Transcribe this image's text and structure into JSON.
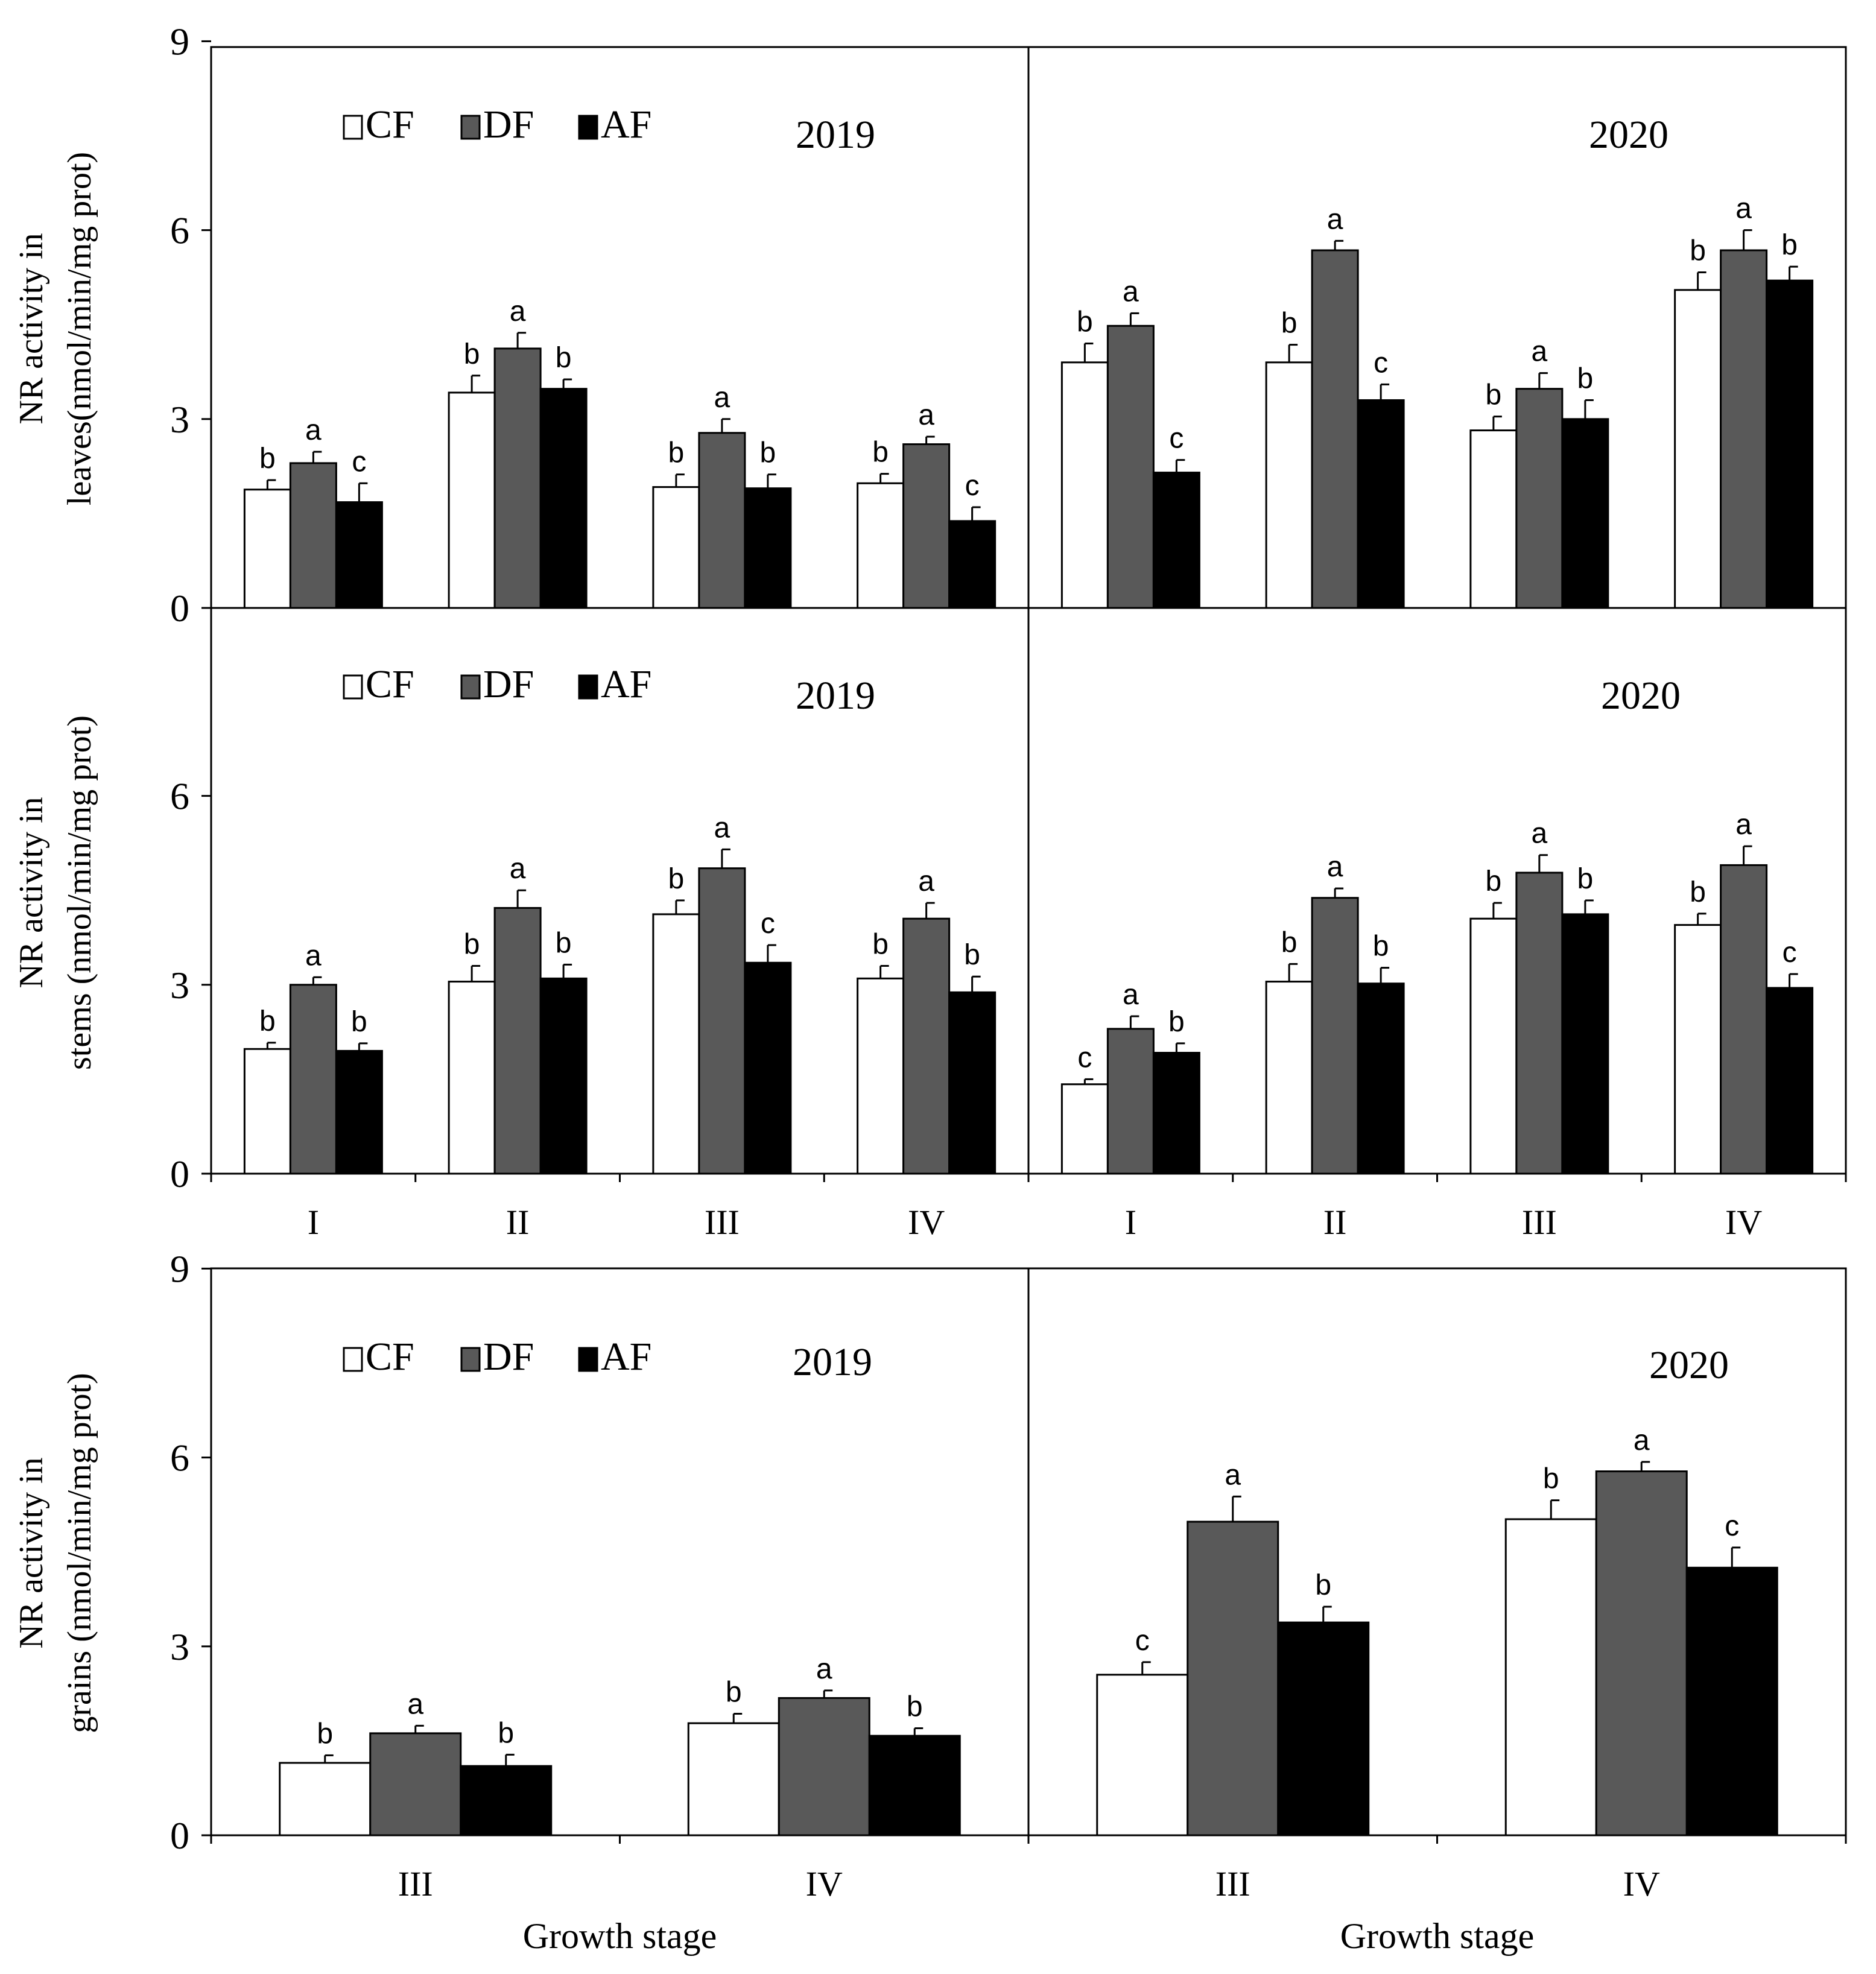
{
  "chart_data": [
    {
      "type": "bar",
      "panel": "leaves-2019",
      "title": "2019",
      "ylabel_lines": [
        "NR activity in",
        "leaves(nmol/min/mg prot)"
      ],
      "xlabel": "",
      "ylim": [
        0,
        9
      ],
      "yticks": [
        "0",
        "3",
        "6",
        "9"
      ],
      "categories": [
        "I",
        "II",
        "III",
        "IV"
      ],
      "series": [
        {
          "name": "CF",
          "values": [
            1.88,
            3.42,
            1.92,
            1.98
          ],
          "errors": [
            0.15,
            0.27,
            0.2,
            0.15
          ],
          "letters": [
            "b",
            "b",
            "b",
            "b"
          ]
        },
        {
          "name": "DF",
          "values": [
            2.3,
            4.12,
            2.78,
            2.6
          ],
          "errors": [
            0.18,
            0.25,
            0.22,
            0.12
          ],
          "letters": [
            "a",
            "a",
            "a",
            "a"
          ]
        },
        {
          "name": "AF",
          "values": [
            1.68,
            3.48,
            1.9,
            1.38
          ],
          "errors": [
            0.3,
            0.15,
            0.22,
            0.22
          ],
          "letters": [
            "c",
            "b",
            "b",
            "c"
          ]
        }
      ],
      "legend": [
        "CF",
        "DF",
        "AF"
      ]
    },
    {
      "type": "bar",
      "panel": "leaves-2020",
      "title": "2020",
      "ylim": [
        0,
        9
      ],
      "categories": [
        "I",
        "II",
        "III",
        "IV"
      ],
      "series": [
        {
          "name": "CF",
          "values": [
            3.9,
            3.9,
            2.82,
            5.05
          ],
          "errors": [
            0.3,
            0.28,
            0.22,
            0.28
          ],
          "letters": [
            "b",
            "b",
            "b",
            "b"
          ]
        },
        {
          "name": "DF",
          "values": [
            4.48,
            5.68,
            3.48,
            5.68
          ],
          "errors": [
            0.2,
            0.15,
            0.25,
            0.32
          ],
          "letters": [
            "a",
            "a",
            "a",
            "a"
          ]
        },
        {
          "name": "AF",
          "values": [
            2.15,
            3.3,
            3.0,
            5.2
          ],
          "errors": [
            0.2,
            0.25,
            0.3,
            0.22
          ],
          "letters": [
            "c",
            "c",
            "b",
            "b"
          ]
        }
      ]
    },
    {
      "type": "bar",
      "panel": "stems-2019",
      "title": "2019",
      "ylabel_lines": [
        "NR activity in",
        "stems (nmol/min/mg  prot)"
      ],
      "ylim": [
        0,
        9
      ],
      "yticks": [
        "0",
        "3",
        "6"
      ],
      "categories": [
        "I",
        "II",
        "III",
        "IV"
      ],
      "series": [
        {
          "name": "CF",
          "values": [
            1.98,
            3.05,
            4.12,
            3.1
          ],
          "errors": [
            0.1,
            0.25,
            0.22,
            0.2
          ],
          "letters": [
            "b",
            "b",
            "b",
            "b"
          ]
        },
        {
          "name": "DF",
          "values": [
            3.0,
            4.22,
            4.85,
            4.05
          ],
          "errors": [
            0.12,
            0.28,
            0.3,
            0.25
          ],
          "letters": [
            "a",
            "a",
            "a",
            "a"
          ]
        },
        {
          "name": "AF",
          "values": [
            1.95,
            3.1,
            3.35,
            2.88
          ],
          "errors": [
            0.12,
            0.22,
            0.28,
            0.25
          ],
          "letters": [
            "b",
            "b",
            "c",
            "b"
          ]
        }
      ],
      "legend": [
        "CF",
        "DF",
        "AF"
      ]
    },
    {
      "type": "bar",
      "panel": "stems-2020",
      "title": "2020",
      "ylim": [
        0,
        9
      ],
      "categories": [
        "I",
        "II",
        "III",
        "IV"
      ],
      "series": [
        {
          "name": "CF",
          "values": [
            1.42,
            3.05,
            4.05,
            3.95
          ],
          "errors": [
            0.08,
            0.28,
            0.25,
            0.18
          ],
          "letters": [
            "c",
            "b",
            "b",
            "b"
          ]
        },
        {
          "name": "DF",
          "values": [
            2.3,
            4.38,
            4.78,
            4.9
          ],
          "errors": [
            0.2,
            0.15,
            0.28,
            0.3
          ],
          "letters": [
            "a",
            "a",
            "a",
            "a"
          ]
        },
        {
          "name": "AF",
          "values": [
            1.92,
            3.02,
            4.12,
            2.95
          ],
          "errors": [
            0.15,
            0.25,
            0.22,
            0.22
          ],
          "letters": [
            "b",
            "b",
            "b",
            "c"
          ]
        }
      ]
    },
    {
      "type": "bar",
      "panel": "grains-2019",
      "title": "2019",
      "ylabel_lines": [
        "NR activity in",
        "grains (nmol/min/mg  prot)"
      ],
      "xlabel": "Growth stage",
      "ylim": [
        0,
        9
      ],
      "yticks": [
        "0",
        "3",
        "6",
        "9"
      ],
      "categories": [
        "III",
        "IV"
      ],
      "series": [
        {
          "name": "CF",
          "values": [
            1.15,
            1.78
          ],
          "errors": [
            0.12,
            0.15
          ],
          "letters": [
            "b",
            "b"
          ]
        },
        {
          "name": "DF",
          "values": [
            1.62,
            2.18
          ],
          "errors": [
            0.12,
            0.12
          ],
          "letters": [
            "a",
            "a"
          ]
        },
        {
          "name": "AF",
          "values": [
            1.1,
            1.58
          ],
          "errors": [
            0.18,
            0.12
          ],
          "letters": [
            "b",
            "b"
          ]
        }
      ],
      "legend": [
        "CF",
        "DF",
        "AF"
      ]
    },
    {
      "type": "bar",
      "panel": "grains-2020",
      "title": "2020",
      "xlabel": "Growth stage",
      "ylim": [
        0,
        9
      ],
      "categories": [
        "III",
        "IV"
      ],
      "series": [
        {
          "name": "CF",
          "values": [
            2.55,
            5.02
          ],
          "errors": [
            0.2,
            0.3
          ],
          "letters": [
            "c",
            "b"
          ]
        },
        {
          "name": "DF",
          "values": [
            4.98,
            5.78
          ],
          "errors": [
            0.4,
            0.15
          ],
          "letters": [
            "a",
            "a"
          ]
        },
        {
          "name": "AF",
          "values": [
            3.38,
            4.25
          ],
          "errors": [
            0.25,
            0.32
          ],
          "letters": [
            "b",
            "c"
          ]
        }
      ]
    }
  ],
  "style": {
    "colors": {
      "CF": "#ffffff",
      "DF": "#595959",
      "AF": "#000000"
    }
  }
}
